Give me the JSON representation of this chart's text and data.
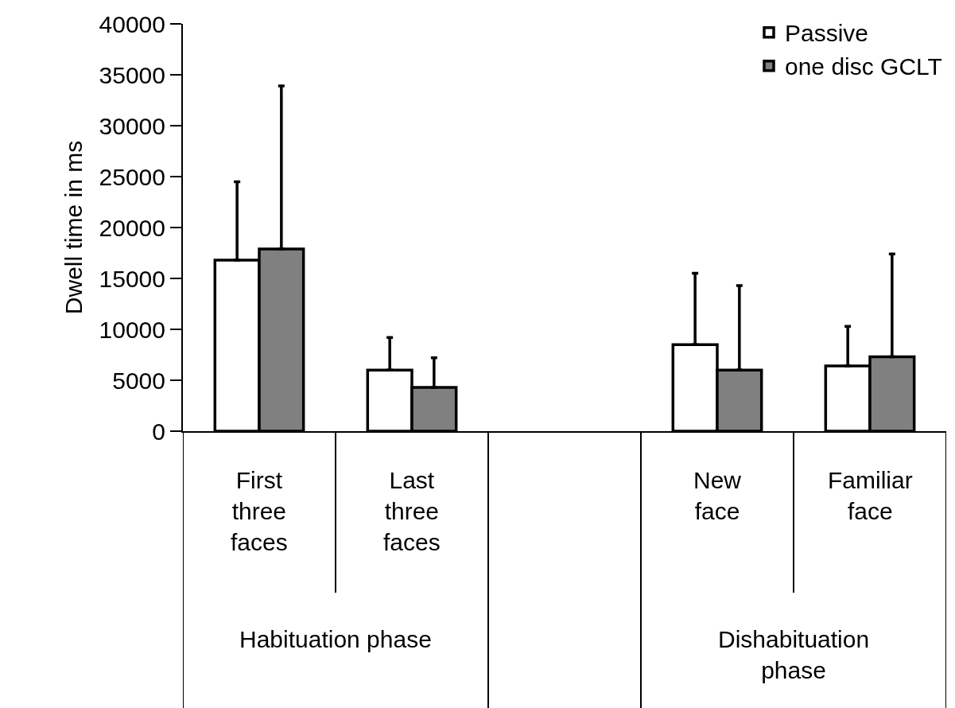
{
  "chart_data": {
    "type": "bar",
    "ylabel": "Dwell time in ms",
    "categories": [
      "First three faces",
      "Last three faces",
      null,
      "New face",
      "Familiar face"
    ],
    "series": [
      {
        "name": "Passive",
        "color": "#ffffff",
        "values": [
          16800,
          6000,
          null,
          8500,
          6400
        ],
        "errors": [
          [
            16800,
            24500
          ],
          [
            6000,
            9200
          ],
          null,
          [
            8500,
            15500
          ],
          [
            6400,
            10300
          ]
        ]
      },
      {
        "name": "one disc GCLT",
        "color": "#808080",
        "values": [
          17900,
          4300,
          null,
          6000,
          7300
        ],
        "errors": [
          [
            17900,
            33900
          ],
          [
            4300,
            7200
          ],
          null,
          [
            6000,
            14300
          ],
          [
            7300,
            17400
          ]
        ]
      }
    ],
    "annotations": [
      "Habituation phase",
      "Dishabituation phase"
    ],
    "ylim": [
      0,
      40000
    ],
    "yticks": [
      0,
      5000,
      10000,
      15000,
      20000,
      25000,
      30000,
      35000,
      40000
    ],
    "legend": "top right"
  }
}
